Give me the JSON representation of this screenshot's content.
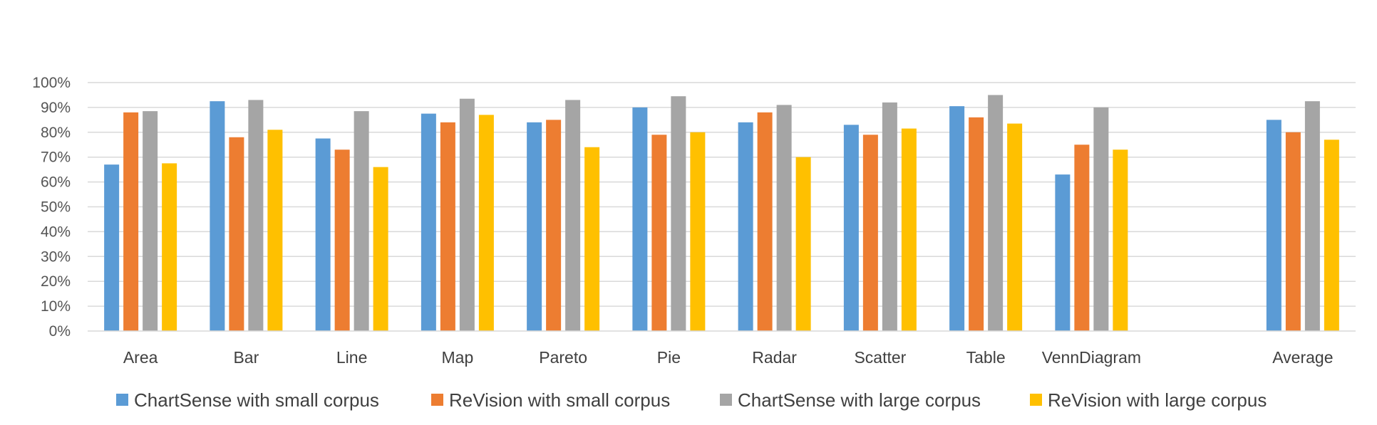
{
  "chart_data": {
    "type": "bar",
    "title": "",
    "xlabel": "",
    "ylabel": "",
    "ylim": [
      0,
      1
    ],
    "y_ticks": [
      "0%",
      "10%",
      "20%",
      "30%",
      "40%",
      "50%",
      "60%",
      "70%",
      "80%",
      "90%",
      "100%"
    ],
    "grid": true,
    "legend_position": "bottom",
    "categories": [
      "Area",
      "Bar",
      "Line",
      "Map",
      "Pareto",
      "Pie",
      "Radar",
      "Scatter",
      "Table",
      "VennDiagram",
      "",
      "Average"
    ],
    "series": [
      {
        "name": "ChartSense with small corpus",
        "color": "#5B9BD5",
        "values": [
          0.67,
          0.925,
          0.775,
          0.875,
          0.84,
          0.9,
          0.84,
          0.83,
          0.905,
          0.63,
          null,
          0.85
        ]
      },
      {
        "name": "ReVision with small corpus",
        "color": "#ED7D31",
        "values": [
          0.88,
          0.78,
          0.73,
          0.84,
          0.85,
          0.79,
          0.88,
          0.79,
          0.86,
          0.75,
          null,
          0.8
        ]
      },
      {
        "name": "ChartSense with large corpus",
        "color": "#A5A5A5",
        "values": [
          0.885,
          0.93,
          0.885,
          0.935,
          0.93,
          0.945,
          0.91,
          0.92,
          0.95,
          0.9,
          null,
          0.925
        ]
      },
      {
        "name": "ReVision with large corpus",
        "color": "#FFC000",
        "values": [
          0.675,
          0.81,
          0.66,
          0.87,
          0.74,
          0.8,
          0.7,
          0.815,
          0.835,
          0.73,
          null,
          0.77
        ]
      }
    ]
  }
}
